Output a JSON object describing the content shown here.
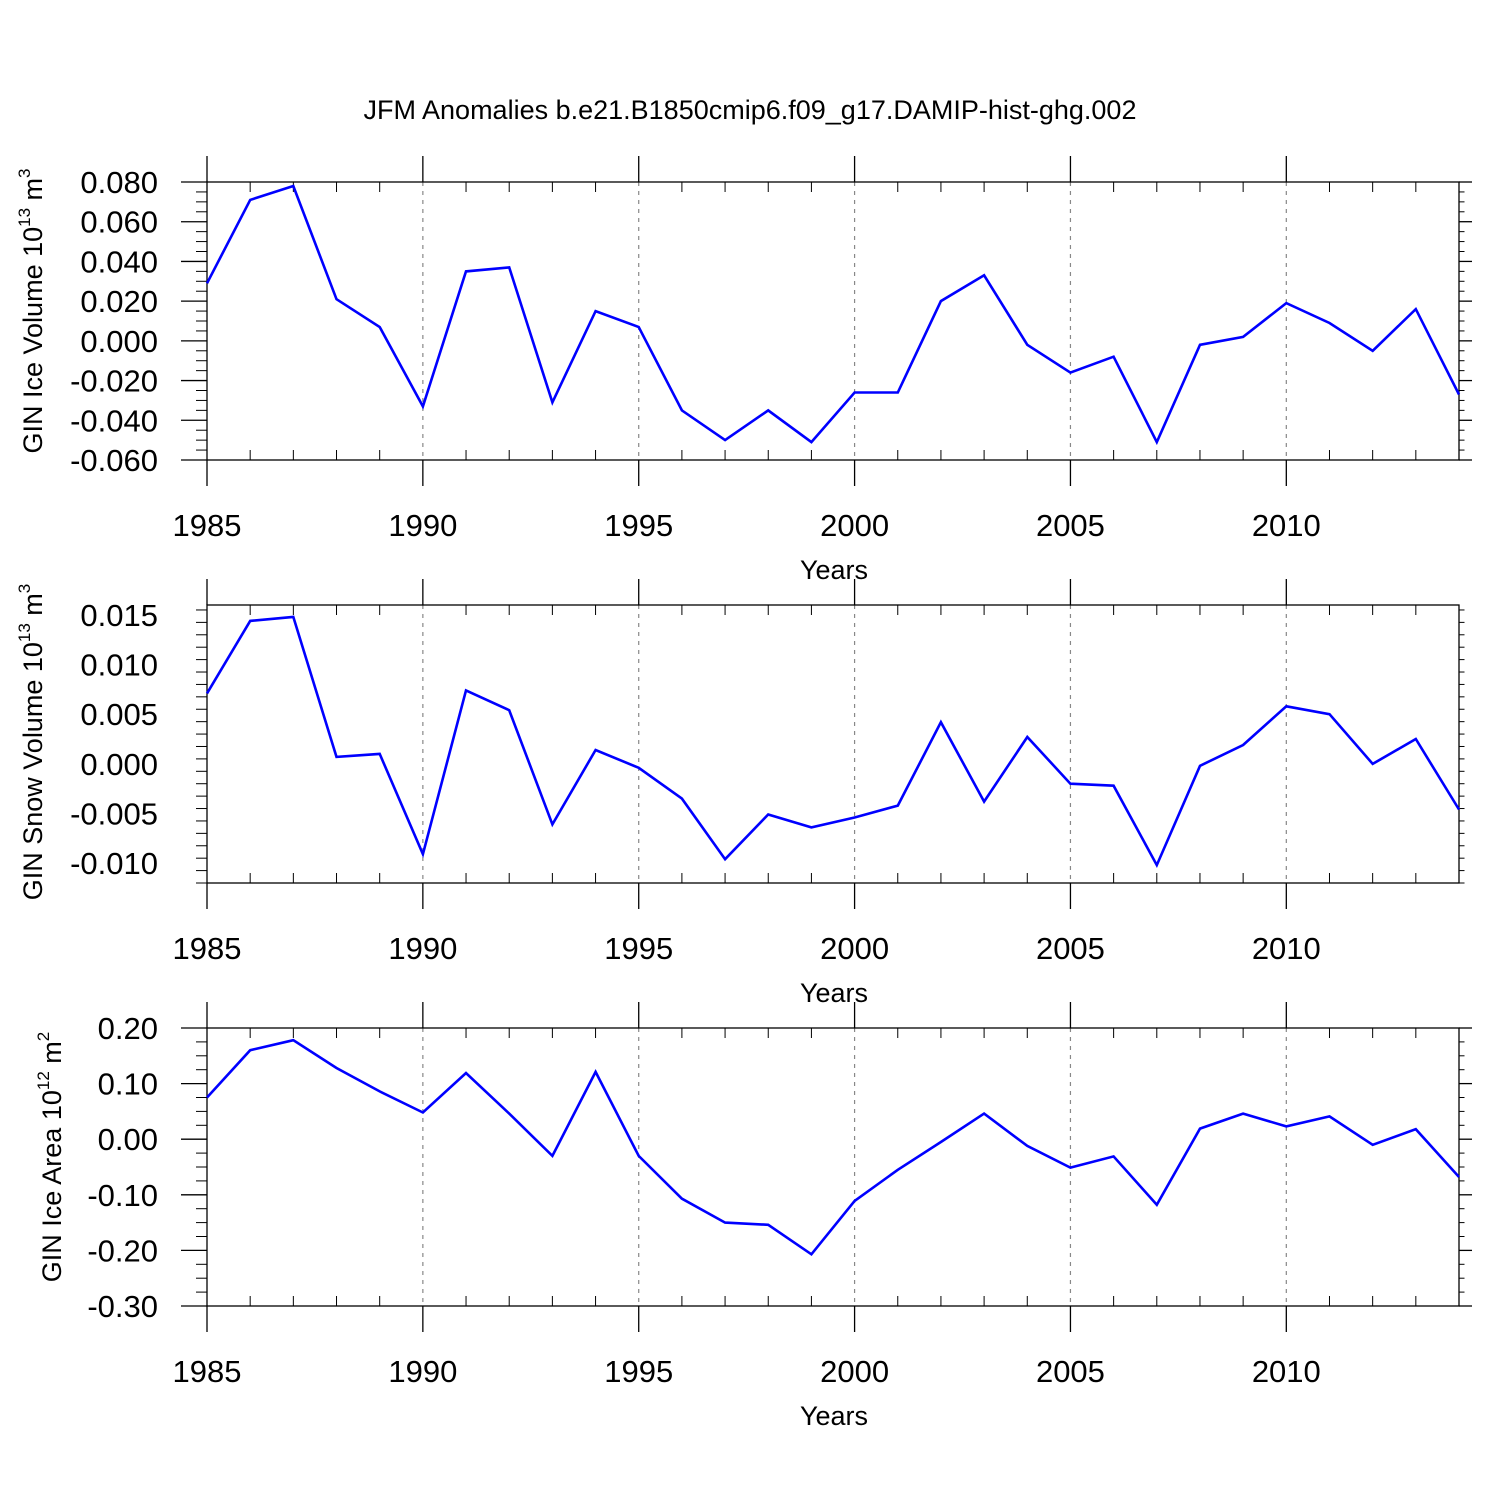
{
  "title": "JFM Anomalies b.e21.B1850cmip6.f09_g17.DAMIP-hist-ghg.002",
  "line_color": "#0000ff",
  "chart_data": [
    {
      "type": "line",
      "xlabel": "Years",
      "ylabel": {
        "main": "GIN Ice Volume 10",
        "exp": "13",
        "unit": " m",
        "unit_exp": "3"
      },
      "x": [
        1985,
        1986,
        1987,
        1988,
        1989,
        1990,
        1991,
        1992,
        1993,
        1994,
        1995,
        1996,
        1997,
        1998,
        1999,
        2000,
        2001,
        2002,
        2003,
        2004,
        2005,
        2006,
        2007,
        2008,
        2009,
        2010,
        2011,
        2012,
        2013,
        2014
      ],
      "series": [
        {
          "values": [
            0.029,
            0.071,
            0.078,
            0.021,
            0.007,
            -0.033,
            0.035,
            0.037,
            -0.031,
            0.015,
            0.007,
            -0.035,
            -0.05,
            -0.035,
            -0.051,
            -0.026,
            -0.026,
            0.02,
            0.033,
            -0.002,
            -0.016,
            -0.008,
            -0.051,
            -0.002,
            0.002,
            0.019,
            0.009,
            -0.005,
            0.016,
            -0.027
          ]
        }
      ],
      "xlim": [
        1985,
        2014
      ],
      "ylim": [
        -0.06,
        0.08
      ],
      "xticks": [
        "1985",
        "1990",
        "1995",
        "2000",
        "2005",
        "2010"
      ],
      "yticks": [
        "0.080",
        "0.060",
        "0.040",
        "0.020",
        "0.000",
        "-0.020",
        "-0.040",
        "-0.060"
      ]
    },
    {
      "type": "line",
      "xlabel": "Years",
      "ylabel": {
        "main": "GIN Snow Volume 10",
        "exp": "13",
        "unit": " m",
        "unit_exp": "3"
      },
      "x": [
        1985,
        1986,
        1987,
        1988,
        1989,
        1990,
        1991,
        1992,
        1993,
        1994,
        1995,
        1996,
        1997,
        1998,
        1999,
        2000,
        2001,
        2002,
        2003,
        2004,
        2005,
        2006,
        2007,
        2008,
        2009,
        2010,
        2011,
        2012,
        2013,
        2014
      ],
      "series": [
        {
          "values": [
            0.0071,
            0.0144,
            0.0148,
            0.0007,
            0.001,
            -0.0091,
            0.0074,
            0.0054,
            -0.0061,
            0.0014,
            -0.0004,
            -0.0035,
            -0.0096,
            -0.0051,
            -0.0064,
            -0.0054,
            -0.0042,
            0.0042,
            -0.0038,
            0.0027,
            -0.002,
            -0.0022,
            -0.0102,
            -0.0002,
            0.0019,
            0.0058,
            0.005,
            0.0,
            0.0025,
            -0.0046
          ]
        }
      ],
      "xlim": [
        1985,
        2014
      ],
      "ylim": [
        -0.012,
        0.016
      ],
      "xticks": [
        "1985",
        "1990",
        "1995",
        "2000",
        "2005",
        "2010"
      ],
      "yticks": [
        "0.015",
        "0.010",
        "0.005",
        "0.000",
        "-0.005",
        "-0.010"
      ]
    },
    {
      "type": "line",
      "xlabel": "Years",
      "ylabel": {
        "main": "GIN Ice Area 10",
        "exp": "12",
        "unit": " m",
        "unit_exp": "2"
      },
      "x": [
        1985,
        1986,
        1987,
        1988,
        1989,
        1990,
        1991,
        1992,
        1993,
        1994,
        1995,
        1996,
        1997,
        1998,
        1999,
        2000,
        2001,
        2002,
        2003,
        2004,
        2005,
        2006,
        2007,
        2008,
        2009,
        2010,
        2011,
        2012,
        2013,
        2014
      ],
      "series": [
        {
          "values": [
            0.075,
            0.16,
            0.178,
            0.128,
            0.086,
            0.048,
            0.119,
            0.046,
            -0.03,
            0.121,
            -0.03,
            -0.107,
            -0.15,
            -0.154,
            -0.207,
            -0.111,
            -0.055,
            -0.005,
            0.046,
            -0.012,
            -0.051,
            -0.031,
            -0.118,
            0.019,
            0.046,
            0.023,
            0.041,
            -0.01,
            0.018,
            -0.068
          ]
        }
      ],
      "xlim": [
        1985,
        2014
      ],
      "ylim": [
        -0.3,
        0.2
      ],
      "xticks": [
        "1985",
        "1990",
        "1995",
        "2000",
        "2005",
        "2010"
      ],
      "yticks": [
        "0.20",
        "0.10",
        "0.00",
        "-0.10",
        "-0.20",
        "-0.30"
      ]
    }
  ]
}
